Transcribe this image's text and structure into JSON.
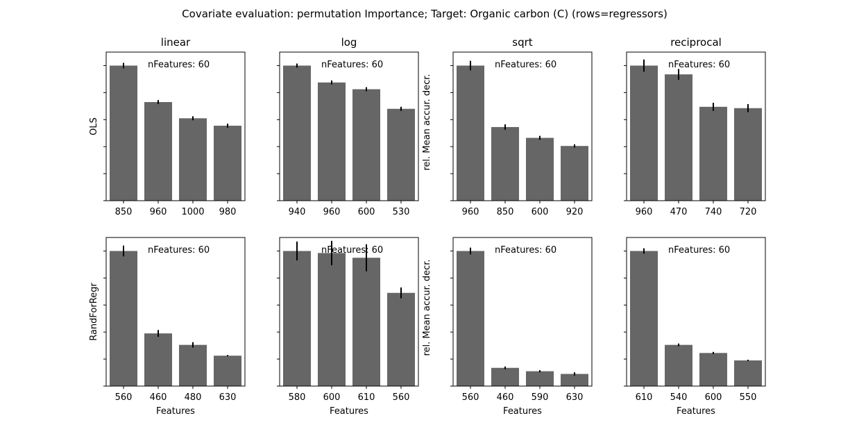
{
  "chart_data": {
    "type": "bar",
    "title": "Covariate evaluation: permutation Importance; Target: Organic carbon (C) (rows=regressors)",
    "column_titles": [
      "linear",
      "log",
      "sqrt",
      "reciprocal"
    ],
    "row_labels": [
      "OLS",
      "RandForRegr"
    ],
    "ylabel_inner": "rel. Mean accur. decr.",
    "xlabel": "Features",
    "annotation": "nFeatures: 60",
    "grid": false,
    "ylim": [
      0,
      1.1
    ],
    "yticks": [
      0,
      0.2,
      0.4,
      0.6,
      0.8,
      1.0
    ],
    "bar_color": "#666666",
    "error_color": "#000000",
    "panels": [
      {
        "row": "OLS",
        "column": "linear",
        "categories": [
          "850",
          "960",
          "1000",
          "980"
        ],
        "values": [
          1.0,
          0.73,
          0.61,
          0.555
        ],
        "errors": [
          0.02,
          0.015,
          0.015,
          0.015
        ]
      },
      {
        "row": "OLS",
        "column": "log",
        "categories": [
          "940",
          "960",
          "600",
          "530"
        ],
        "values": [
          1.0,
          0.875,
          0.825,
          0.68
        ],
        "errors": [
          0.015,
          0.015,
          0.015,
          0.015
        ]
      },
      {
        "row": "OLS",
        "column": "sqrt",
        "categories": [
          "960",
          "850",
          "600",
          "920"
        ],
        "values": [
          1.0,
          0.545,
          0.465,
          0.405
        ],
        "errors": [
          0.035,
          0.02,
          0.015,
          0.012
        ]
      },
      {
        "row": "OLS",
        "column": "reciprocal",
        "categories": [
          "960",
          "470",
          "740",
          "720"
        ],
        "values": [
          1.0,
          0.935,
          0.695,
          0.685
        ],
        "errors": [
          0.045,
          0.04,
          0.03,
          0.03
        ]
      },
      {
        "row": "RandForRegr",
        "column": "linear",
        "categories": [
          "560",
          "460",
          "480",
          "630"
        ],
        "values": [
          1.0,
          0.39,
          0.305,
          0.225
        ],
        "errors": [
          0.04,
          0.025,
          0.02,
          0.005
        ]
      },
      {
        "row": "RandForRegr",
        "column": "log",
        "categories": [
          "580",
          "600",
          "610",
          "560"
        ],
        "values": [
          1.0,
          0.985,
          0.95,
          0.69
        ],
        "errors": [
          0.07,
          0.09,
          0.1,
          0.04
        ]
      },
      {
        "row": "RandForRegr",
        "column": "sqrt",
        "categories": [
          "560",
          "460",
          "590",
          "630"
        ],
        "values": [
          1.0,
          0.135,
          0.11,
          0.09
        ],
        "errors": [
          0.025,
          0.01,
          0.008,
          0.012
        ]
      },
      {
        "row": "RandForRegr",
        "column": "reciprocal",
        "categories": [
          "610",
          "540",
          "600",
          "550"
        ],
        "values": [
          1.0,
          0.305,
          0.245,
          0.19
        ],
        "errors": [
          0.02,
          0.01,
          0.008,
          0.005
        ]
      }
    ]
  }
}
